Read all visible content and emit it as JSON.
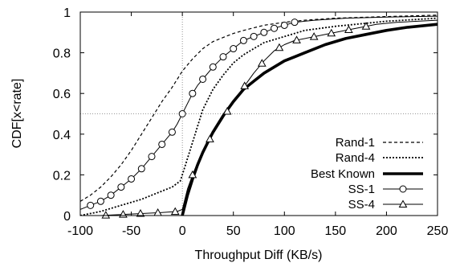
{
  "chart_data": {
    "type": "line",
    "title": "",
    "xlabel": "Throughput Diff (KB/s)",
    "ylabel": "CDF[x<rate]",
    "xlim": [
      -100,
      250
    ],
    "ylim": [
      0,
      1
    ],
    "xticks": [
      -100,
      -50,
      0,
      50,
      100,
      150,
      200,
      250
    ],
    "yticks": [
      0,
      0.2,
      0.4,
      0.6,
      0.8,
      1
    ],
    "yticklabels": [
      "0",
      "0.2",
      "0.4",
      "0.6",
      "0.8",
      "1"
    ],
    "grid": false,
    "reference_lines": {
      "x": 0,
      "y": 0.5
    },
    "legend": "bottom-right",
    "series": [
      {
        "name": "Rand-1",
        "style": "dashed",
        "marker": "none",
        "x": [
          -100,
          -90,
          -80,
          -70,
          -60,
          -50,
          -40,
          -30,
          -20,
          -10,
          -5,
          0,
          5,
          10,
          20,
          30,
          40,
          50,
          60,
          80,
          100,
          120,
          150,
          200,
          250
        ],
        "y": [
          0.07,
          0.1,
          0.14,
          0.19,
          0.25,
          0.32,
          0.4,
          0.48,
          0.56,
          0.63,
          0.67,
          0.71,
          0.74,
          0.77,
          0.82,
          0.855,
          0.875,
          0.895,
          0.91,
          0.935,
          0.95,
          0.96,
          0.97,
          0.978,
          0.985
        ]
      },
      {
        "name": "Rand-4",
        "style": "dotted",
        "marker": "none",
        "x": [
          -100,
          -80,
          -60,
          -40,
          -20,
          -10,
          -2,
          0,
          5,
          10,
          15,
          20,
          30,
          40,
          50,
          60,
          70,
          80,
          100,
          120,
          150,
          200,
          250
        ],
        "y": [
          0.0,
          0.02,
          0.05,
          0.08,
          0.12,
          0.14,
          0.17,
          0.2,
          0.28,
          0.36,
          0.44,
          0.52,
          0.62,
          0.69,
          0.75,
          0.79,
          0.82,
          0.85,
          0.88,
          0.91,
          0.93,
          0.955,
          0.97
        ]
      },
      {
        "name": "Best Known",
        "style": "thick",
        "marker": "none",
        "x": [
          0,
          5,
          10,
          15,
          20,
          25,
          30,
          40,
          50,
          60,
          70,
          80,
          90,
          100,
          110,
          120,
          140,
          160,
          180,
          200,
          220,
          250
        ],
        "y": [
          0.0,
          0.1,
          0.18,
          0.25,
          0.31,
          0.36,
          0.41,
          0.49,
          0.56,
          0.62,
          0.66,
          0.7,
          0.73,
          0.76,
          0.78,
          0.8,
          0.84,
          0.87,
          0.89,
          0.91,
          0.925,
          0.94
        ]
      },
      {
        "name": "SS-1",
        "style": "solid",
        "marker": "circle",
        "x": [
          -100,
          -90,
          -80,
          -70,
          -60,
          -50,
          -40,
          -30,
          -20,
          -10,
          -5,
          0,
          5,
          10,
          15,
          20,
          30,
          40,
          50,
          60,
          70,
          80,
          90,
          100,
          110,
          130,
          160,
          200,
          250
        ],
        "y": [
          0.03,
          0.05,
          0.07,
          0.1,
          0.14,
          0.18,
          0.23,
          0.29,
          0.35,
          0.41,
          0.45,
          0.5,
          0.55,
          0.6,
          0.64,
          0.67,
          0.73,
          0.78,
          0.82,
          0.86,
          0.88,
          0.9,
          0.92,
          0.935,
          0.95,
          0.96,
          0.97,
          0.975,
          0.98
        ]
      },
      {
        "name": "SS-4",
        "style": "solid",
        "marker": "triangle",
        "x": [
          -100,
          -80,
          -60,
          -40,
          -20,
          -5,
          0,
          2,
          5,
          10,
          15,
          20,
          25,
          30,
          35,
          40,
          45,
          50,
          60,
          70,
          80,
          90,
          100,
          110,
          130,
          150,
          170,
          190,
          210,
          250
        ],
        "y": [
          0.0,
          0.0,
          0.005,
          0.01,
          0.015,
          0.02,
          0.03,
          0.07,
          0.13,
          0.2,
          0.26,
          0.31,
          0.36,
          0.4,
          0.44,
          0.48,
          0.52,
          0.56,
          0.63,
          0.7,
          0.76,
          0.81,
          0.84,
          0.86,
          0.88,
          0.9,
          0.92,
          0.94,
          0.95,
          0.96
        ]
      }
    ]
  }
}
